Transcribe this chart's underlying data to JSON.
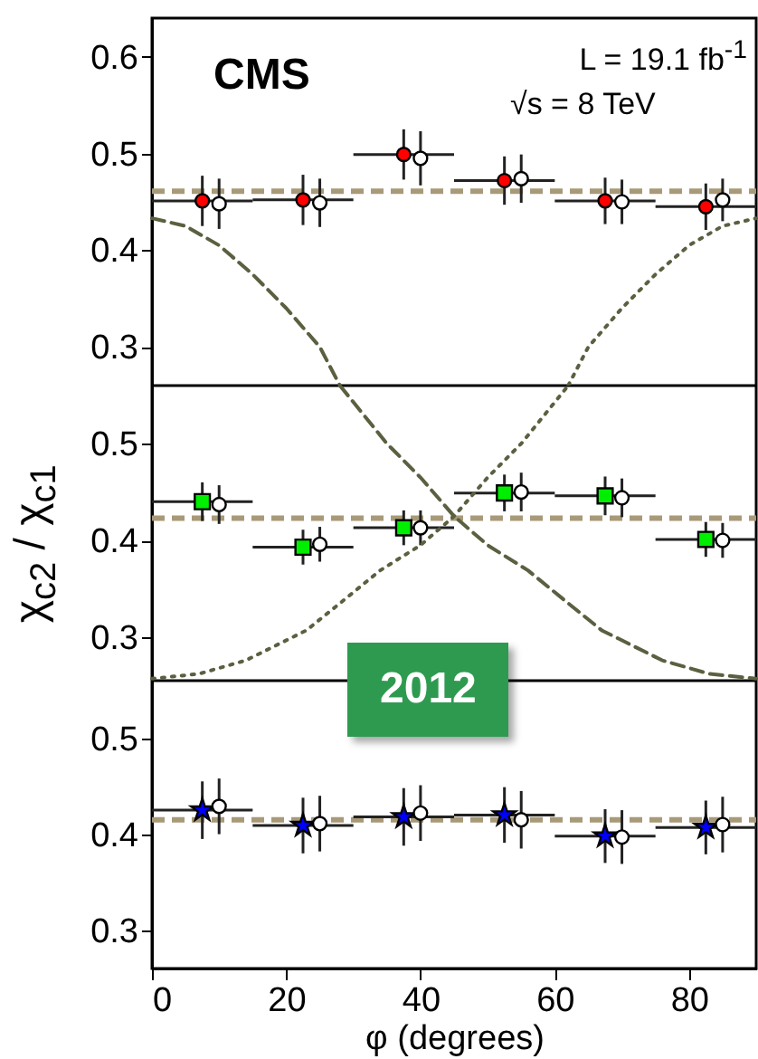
{
  "chart_data": [
    {
      "type": "scatter",
      "xlim": [
        0,
        90
      ],
      "xticks": [
        0,
        20,
        40,
        60,
        80
      ],
      "ylim": [
        0.26,
        0.64
      ],
      "yticks": [
        0.3,
        0.4,
        0.5,
        0.6
      ],
      "tick_labels": "y",
      "annotations": [
        "CMS",
        "L = 19.1 fb$^{-1}$",
        "√s = 8 TeV"
      ],
      "ref_lines": [
        {
          "axis": "y",
          "value": 0.461,
          "color": "#a89a78",
          "line_style": "dashed"
        }
      ],
      "series": [
        {
          "type": "scatter",
          "marker": "circle",
          "color": "#ff0000",
          "x": [
            7.5,
            22.5,
            37.5,
            52.5,
            67.5,
            82.5
          ],
          "values": [
            0.451,
            0.452,
            0.499,
            0.472,
            0.451,
            0.445
          ],
          "errors": [
            0.026,
            0.026,
            0.026,
            0.025,
            0.024,
            0.024
          ],
          "xerrors": [
            7.5,
            7.5,
            7.5,
            7.5,
            7.5,
            7.5
          ]
        },
        {
          "type": "scatter",
          "marker": "circle",
          "color": "#ffffff",
          "x": [
            10,
            25,
            40,
            55,
            70,
            85
          ],
          "values": [
            0.448,
            0.449,
            0.495,
            0.474,
            0.45,
            0.452
          ],
          "errors": [
            0.026,
            0.025,
            0.028,
            0.025,
            0.023,
            0.022
          ]
        },
        {
          "type": "line",
          "line_style": "dashed",
          "color": "#5a6040",
          "x": [
            0,
            5,
            10,
            15,
            20,
            25,
            28
          ],
          "values": [
            0.433,
            0.425,
            0.405,
            0.375,
            0.34,
            0.3,
            0.26
          ]
        },
        {
          "type": "line",
          "line_style": "dotted",
          "color": "#5a6040",
          "x": [
            62,
            65,
            70,
            75,
            80,
            85,
            90
          ],
          "values": [
            0.26,
            0.3,
            0.34,
            0.375,
            0.405,
            0.425,
            0.433
          ]
        }
      ]
    },
    {
      "type": "scatter",
      "xlim": [
        0,
        90
      ],
      "xticks": [
        0,
        20,
        40,
        60,
        80
      ],
      "ylim": [
        0.255,
        0.56
      ],
      "yticks": [
        0.3,
        0.4,
        0.5
      ],
      "tick_labels": "y",
      "ylabel": "χ$_{c2}$ / χ$_{c1}$",
      "ref_lines": [
        {
          "axis": "y",
          "value": 0.423,
          "color": "#a89a78",
          "line_style": "dashed"
        }
      ],
      "series": [
        {
          "type": "scatter",
          "marker": "square",
          "color": "#00ee00",
          "x": [
            7.5,
            22.5,
            37.5,
            52.5,
            67.5,
            82.5
          ],
          "values": [
            0.44,
            0.393,
            0.413,
            0.449,
            0.446,
            0.401
          ],
          "errors": [
            0.02,
            0.018,
            0.018,
            0.019,
            0.02,
            0.018
          ],
          "xerrors": [
            7.5,
            7.5,
            7.5,
            7.5,
            7.5,
            7.5
          ]
        },
        {
          "type": "scatter",
          "marker": "circle",
          "color": "#ffffff",
          "x": [
            10,
            25,
            40,
            55,
            70,
            85
          ],
          "values": [
            0.437,
            0.396,
            0.413,
            0.45,
            0.444,
            0.4
          ],
          "errors": [
            0.02,
            0.018,
            0.018,
            0.02,
            0.02,
            0.018
          ]
        },
        {
          "type": "line",
          "line_style": "dashed",
          "color": "#5a6040",
          "x": [
            28,
            35,
            40,
            45,
            50,
            56,
            62,
            67,
            76,
            83,
            90
          ],
          "values": [
            0.56,
            0.5,
            0.465,
            0.425,
            0.395,
            0.369,
            0.335,
            0.307,
            0.276,
            0.262,
            0.257
          ]
        },
        {
          "type": "line",
          "line_style": "dotted",
          "color": "#5a6040",
          "x": [
            0,
            7,
            14,
            23,
            28,
            34,
            40,
            45,
            50,
            55,
            62
          ],
          "values": [
            0.257,
            0.262,
            0.276,
            0.307,
            0.335,
            0.369,
            0.395,
            0.425,
            0.465,
            0.5,
            0.56
          ]
        }
      ]
    },
    {
      "type": "scatter",
      "xlim": [
        0,
        90
      ],
      "xticks": [
        0,
        20,
        40,
        60,
        80
      ],
      "ylim": [
        0.26,
        0.56
      ],
      "yticks": [
        0.3,
        0.4,
        0.5
      ],
      "xlabel": "φ (degrees)",
      "annotations": [
        "2012"
      ],
      "ref_lines": [
        {
          "axis": "y",
          "value": 0.415,
          "color": "#a89a78",
          "line_style": "dashed"
        }
      ],
      "series": [
        {
          "type": "scatter",
          "marker": "star",
          "color": "#0000ff",
          "x": [
            7.5,
            22.5,
            37.5,
            52.5,
            67.5,
            82.5
          ],
          "values": [
            0.425,
            0.409,
            0.418,
            0.42,
            0.398,
            0.407
          ],
          "errors": [
            0.03,
            0.029,
            0.03,
            0.029,
            0.028,
            0.028
          ],
          "xerrors": [
            7.5,
            7.5,
            7.5,
            7.5,
            7.5,
            7.5
          ]
        },
        {
          "type": "scatter",
          "marker": "circle",
          "color": "#ffffff",
          "x": [
            10,
            25,
            40,
            55,
            70,
            85
          ],
          "values": [
            0.429,
            0.411,
            0.422,
            0.415,
            0.397,
            0.41
          ],
          "errors": [
            0.029,
            0.029,
            0.029,
            0.03,
            0.028,
            0.029
          ]
        }
      ]
    }
  ]
}
